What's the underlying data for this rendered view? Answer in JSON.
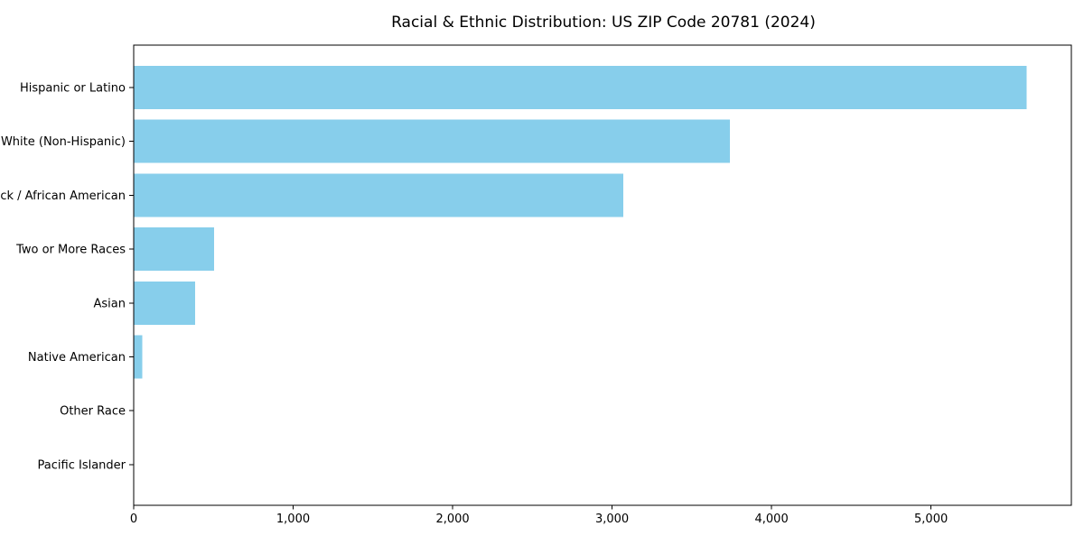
{
  "chart_data": {
    "type": "bar",
    "orientation": "horizontal",
    "title": "Racial & Ethnic Distribution: US ZIP Code 20781 (2024)",
    "xlabel": "",
    "ylabel": "",
    "categories": [
      "Hispanic or Latino",
      "White (Non-Hispanic)",
      "Black / African American",
      "Two or More Races",
      "Asian",
      "Native American",
      "Other Race",
      "Pacific Islander"
    ],
    "values": [
      5600,
      3740,
      3070,
      505,
      385,
      55,
      0,
      0
    ],
    "xlim": [
      0,
      5880
    ],
    "x_ticks": [
      0,
      1000,
      2000,
      3000,
      4000,
      5000
    ],
    "x_tick_labels": [
      "0",
      "1,000",
      "2,000",
      "3,000",
      "4,000",
      "5,000"
    ],
    "bar_color": "#87CEEB",
    "axis_color": "#000000",
    "background": "#ffffff",
    "grid": false,
    "legend_position": "none"
  }
}
